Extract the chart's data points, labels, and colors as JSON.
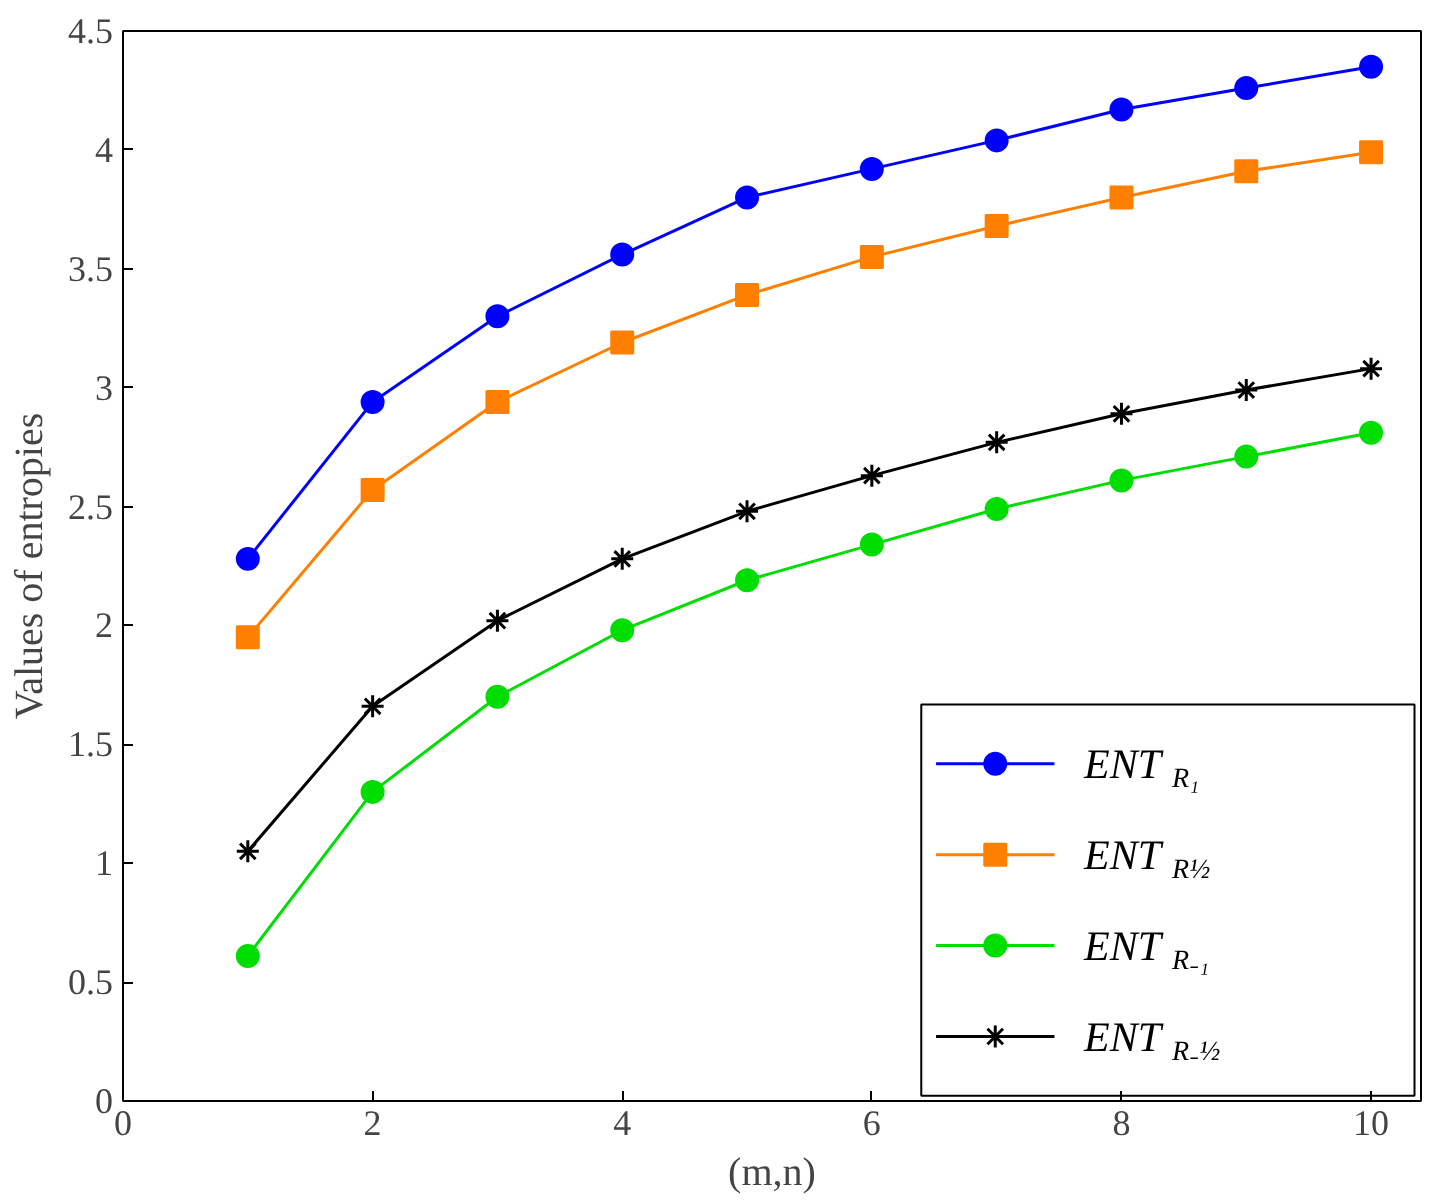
{
  "chart_data": {
    "type": "line",
    "xlabel": "(m,n)",
    "ylabel": "Values of entropies",
    "x": [
      1,
      2,
      3,
      4,
      5,
      6,
      7,
      8,
      9,
      10
    ],
    "series": [
      {
        "name": "ENT$_{R₁}$",
        "color": "#0000ff",
        "marker": "circle",
        "values": [
          2.28,
          2.94,
          3.3,
          3.56,
          3.8,
          3.92,
          4.04,
          4.17,
          4.26,
          4.35
        ]
      },
      {
        "name": "ENT$_{R½}$",
        "color": "#ff8000",
        "marker": "square",
        "values": [
          1.95,
          2.57,
          2.94,
          3.19,
          3.39,
          3.55,
          3.68,
          3.8,
          3.91,
          3.99
        ]
      },
      {
        "name": "ENT$_{R₋₁}$",
        "color": "#00dd00",
        "marker": "circle",
        "values": [
          0.61,
          1.3,
          1.7,
          1.98,
          2.19,
          2.34,
          2.49,
          2.61,
          2.71,
          2.81
        ]
      },
      {
        "name": "ENT$_{R₋½}$",
        "color": "#000000",
        "marker": "cross",
        "values": [
          1.05,
          1.66,
          2.02,
          2.28,
          2.48,
          2.63,
          2.77,
          2.89,
          2.99,
          3.08
        ]
      }
    ],
    "xlim": [
      0,
      10.4
    ],
    "ylim": [
      0,
      4.5
    ],
    "xticks": [
      0,
      2,
      4,
      6,
      8,
      10
    ],
    "yticks": [
      0,
      0.5,
      1,
      1.5,
      2,
      2.5,
      3,
      3.5,
      4,
      4.5
    ],
    "grid": false,
    "legend": "bottom right"
  }
}
